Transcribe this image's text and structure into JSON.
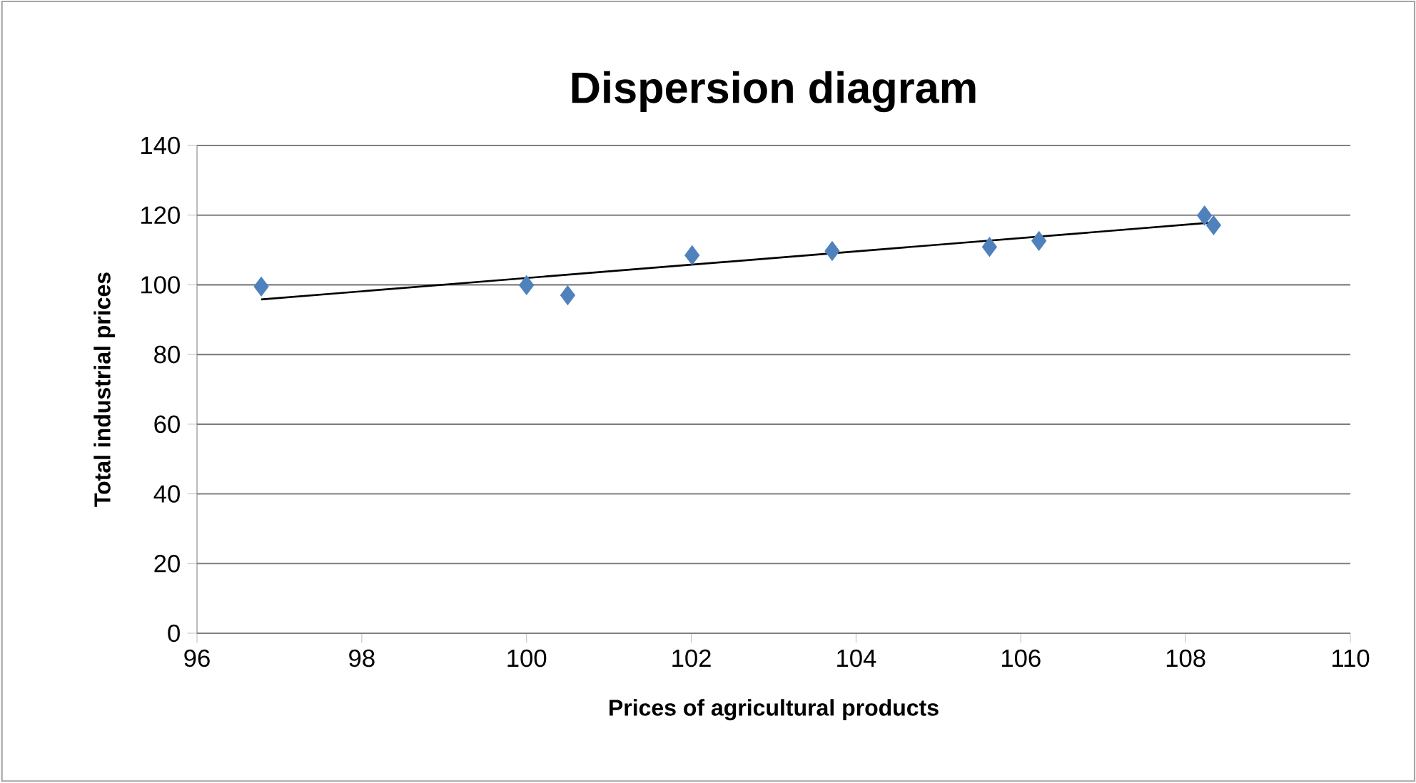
{
  "chart_data": {
    "type": "scatter",
    "title": "Dispersion diagram",
    "xlabel": "Prices of agricultural  products",
    "ylabel": "Total industrial prices",
    "series": [
      {
        "marker": "diamond",
        "color": "#4f81bd",
        "x": [
          96.78,
          100.0,
          100.5,
          102.01,
          103.71,
          105.62,
          106.22,
          108.23,
          108.34
        ],
        "values": [
          99.5,
          99.9,
          97.0,
          108.5,
          109.7,
          110.9,
          112.6,
          119.9,
          117.1
        ]
      },
      {
        "type": "line",
        "color": "#000000",
        "x": [
          96.78,
          108.34
        ],
        "values": [
          95.8,
          117.9
        ]
      }
    ],
    "xlim": [
      96,
      110
    ],
    "xticks": [
      96,
      98,
      100,
      102,
      104,
      106,
      108,
      110
    ],
    "ylim": [
      0,
      140
    ],
    "yticks": [
      0,
      20,
      40,
      60,
      80,
      100,
      120,
      140
    ],
    "grid": "y",
    "legend": false,
    "line_style": "solid"
  }
}
